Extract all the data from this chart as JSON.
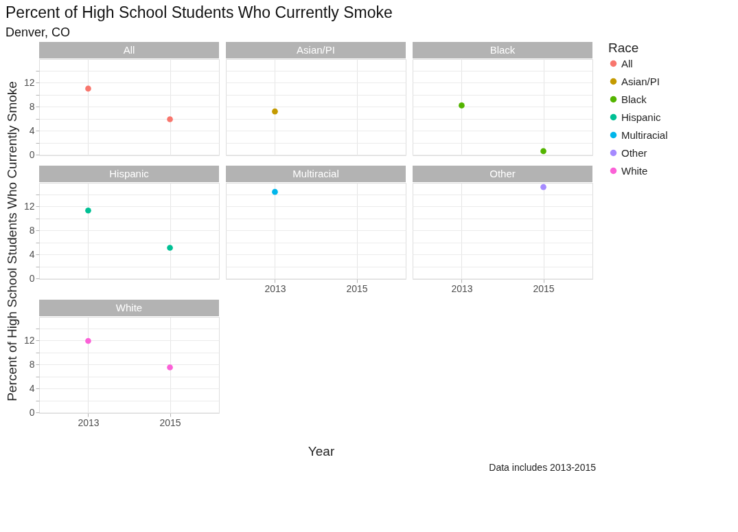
{
  "chart_data": [
    {
      "type": "scatter",
      "title": "Percent of High School Students Who Currently Smoke",
      "subtitle": "Denver, CO",
      "ylabel": "Percent of High School Students Who Currently Smoke",
      "legend_title": "Race",
      "legend": "right",
      "grid": true,
      "marker": "circle",
      "tick_labels": "y",
      "categories": [
        "2013",
        "2015"
      ],
      "ylim": [
        -0.1,
        15.9
      ],
      "yticks": [
        0,
        {
          "value": 2,
          "label": null
        },
        4,
        {
          "value": 6,
          "label": null
        },
        8,
        {
          "value": 10,
          "label": null
        },
        12,
        {
          "value": 14,
          "label": null
        }
      ],
      "series": [
        {
          "name": "All",
          "color": "#f8766d",
          "values": [
            11.0,
            5.9
          ]
        }
      ]
    },
    {
      "type": "scatter",
      "grid": true,
      "marker": "circle",
      "tick_labels": false,
      "categories": [
        "2013",
        "2015"
      ],
      "ylim": [
        -0.1,
        15.9
      ],
      "yticks": [
        0,
        {
          "value": 2,
          "label": null
        },
        4,
        {
          "value": 6,
          "label": null
        },
        8,
        {
          "value": 10,
          "label": null
        },
        12,
        {
          "value": 14,
          "label": null
        }
      ],
      "series": [
        {
          "name": "Asian/PI",
          "color": "#c49a00",
          "values": [
            7.2,
            null
          ]
        }
      ]
    },
    {
      "type": "scatter",
      "grid": true,
      "marker": "circle",
      "tick_labels": false,
      "categories": [
        "2013",
        "2015"
      ],
      "ylim": [
        -0.1,
        15.9
      ],
      "yticks": [
        0,
        {
          "value": 2,
          "label": null
        },
        4,
        {
          "value": 6,
          "label": null
        },
        8,
        {
          "value": 10,
          "label": null
        },
        12,
        {
          "value": 14,
          "label": null
        }
      ],
      "series": [
        {
          "name": "Black",
          "color": "#53b400",
          "values": [
            8.2,
            0.6
          ]
        }
      ]
    },
    {
      "type": "scatter",
      "grid": true,
      "marker": "circle",
      "tick_labels": "y",
      "categories": [
        "2013",
        "2015"
      ],
      "ylim": [
        -0.1,
        15.9
      ],
      "yticks": [
        0,
        {
          "value": 2,
          "label": null
        },
        4,
        {
          "value": 6,
          "label": null
        },
        8,
        {
          "value": 10,
          "label": null
        },
        12,
        {
          "value": 14,
          "label": null
        }
      ],
      "series": [
        {
          "name": "Hispanic",
          "color": "#00c094",
          "values": [
            11.3,
            5.1
          ]
        }
      ]
    },
    {
      "type": "scatter",
      "xlabel": "Year",
      "grid": true,
      "marker": "circle",
      "tick_labels": "x",
      "categories": [
        "2013",
        "2015"
      ],
      "ylim": [
        -0.1,
        15.9
      ],
      "yticks": [
        0,
        {
          "value": 2,
          "label": null
        },
        4,
        {
          "value": 6,
          "label": null
        },
        8,
        {
          "value": 10,
          "label": null
        },
        12,
        {
          "value": 14,
          "label": null
        }
      ],
      "series": [
        {
          "name": "Multiracial",
          "color": "#00b6eb",
          "values": [
            14.4,
            null
          ]
        }
      ]
    },
    {
      "type": "scatter",
      "grid": true,
      "marker": "circle",
      "tick_labels": "x",
      "categories": [
        "2013",
        "2015"
      ],
      "ylim": [
        -0.1,
        15.9
      ],
      "yticks": [
        0,
        {
          "value": 2,
          "label": null
        },
        4,
        {
          "value": 6,
          "label": null
        },
        8,
        {
          "value": 10,
          "label": null
        },
        12,
        {
          "value": 14,
          "label": null
        }
      ],
      "series": [
        {
          "name": "Other",
          "color": "#a58aff",
          "values": [
            null,
            15.2
          ]
        }
      ]
    },
    {
      "type": "scatter",
      "annotations": [
        "Data includes 2013-2015"
      ],
      "grid": true,
      "marker": "circle",
      "categories": [
        "2013",
        "2015"
      ],
      "ylim": [
        -0.1,
        15.9
      ],
      "yticks": [
        0,
        {
          "value": 2,
          "label": null
        },
        4,
        {
          "value": 6,
          "label": null
        },
        8,
        {
          "value": 10,
          "label": null
        },
        12,
        {
          "value": 14,
          "label": null
        }
      ],
      "series": [
        {
          "name": "White",
          "color": "#fb61d7",
          "values": [
            11.9,
            7.5
          ]
        }
      ]
    }
  ]
}
